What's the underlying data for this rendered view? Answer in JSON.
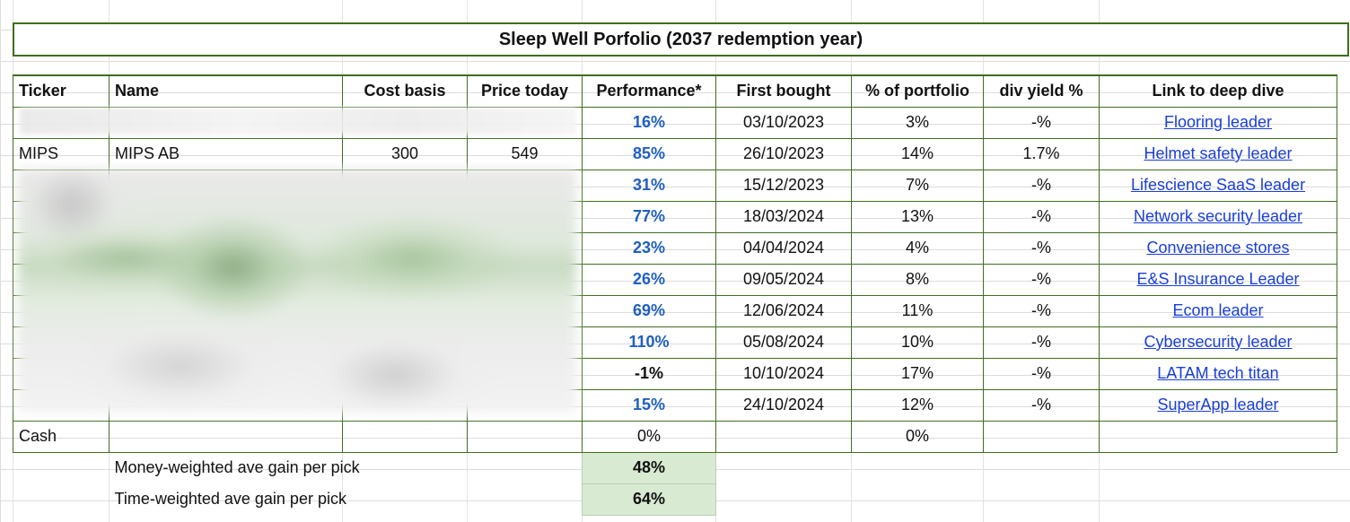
{
  "title": "Sleep Well Porfolio (2037 redemption year)",
  "headers": [
    "Ticker",
    "Name",
    "Cost basis",
    "Price today",
    "Performance*",
    "First bought",
    "% of portfolio",
    "div yield %",
    "Link to deep dive"
  ],
  "rows": [
    {
      "ticker": "",
      "name": "",
      "cost": "",
      "price": "",
      "perf": "16%",
      "first": "03/10/2023",
      "pct": "3%",
      "div": "-%",
      "link": "Flooring leader"
    },
    {
      "ticker": "MIPS",
      "name": "MIPS AB",
      "cost": "300",
      "price": "549",
      "perf": "85%",
      "first": "26/10/2023",
      "pct": "14%",
      "div": "1.7%",
      "link": "Helmet safety leader"
    },
    {
      "ticker": "",
      "name": "",
      "cost": "",
      "price": "",
      "perf": "31%",
      "first": "15/12/2023",
      "pct": "7%",
      "div": "-%",
      "link": "Lifescience SaaS leader"
    },
    {
      "ticker": "",
      "name": "",
      "cost": "",
      "price": "",
      "perf": "77%",
      "first": "18/03/2024",
      "pct": "13%",
      "div": "-%",
      "link": "Network security leader"
    },
    {
      "ticker": "",
      "name": "",
      "cost": "",
      "price": "",
      "perf": "23%",
      "first": "04/04/2024",
      "pct": "4%",
      "div": "-%",
      "link": "Convenience stores"
    },
    {
      "ticker": "",
      "name": "",
      "cost": "",
      "price": "",
      "perf": "26%",
      "first": "09/05/2024",
      "pct": "8%",
      "div": "-%",
      "link": "E&S Insurance Leader"
    },
    {
      "ticker": "",
      "name": "",
      "cost": "",
      "price": "",
      "perf": "69%",
      "first": "12/06/2024",
      "pct": "11%",
      "div": "-%",
      "link": "Ecom leader"
    },
    {
      "ticker": "",
      "name": "",
      "cost": "",
      "price": "",
      "perf": "110%",
      "first": "05/08/2024",
      "pct": "10%",
      "div": "-%",
      "link": "Cybersecurity leader"
    },
    {
      "ticker": "",
      "name": "",
      "cost": "",
      "price": "",
      "perf": "-1%",
      "first": "10/10/2024",
      "pct": "17%",
      "div": "-%",
      "link": "LATAM tech titan"
    },
    {
      "ticker": "",
      "name": "",
      "cost": "",
      "price": "",
      "perf": "15%",
      "first": "24/10/2024",
      "pct": "12%",
      "div": "-%",
      "link": "SuperApp leader"
    }
  ],
  "cash": {
    "ticker": "Cash",
    "perf": "0%",
    "pct": "0%"
  },
  "summary": [
    {
      "label": "Money-weighted ave gain per pick",
      "value": "48%"
    },
    {
      "label": "Time-weighted ave gain per pick",
      "value": "64%"
    }
  ],
  "colors": {
    "border": "#3f6e1f",
    "perf_blue": "#1f5fbf",
    "link_blue": "#1a3fd6",
    "summary_fill": "#d9ead3"
  }
}
